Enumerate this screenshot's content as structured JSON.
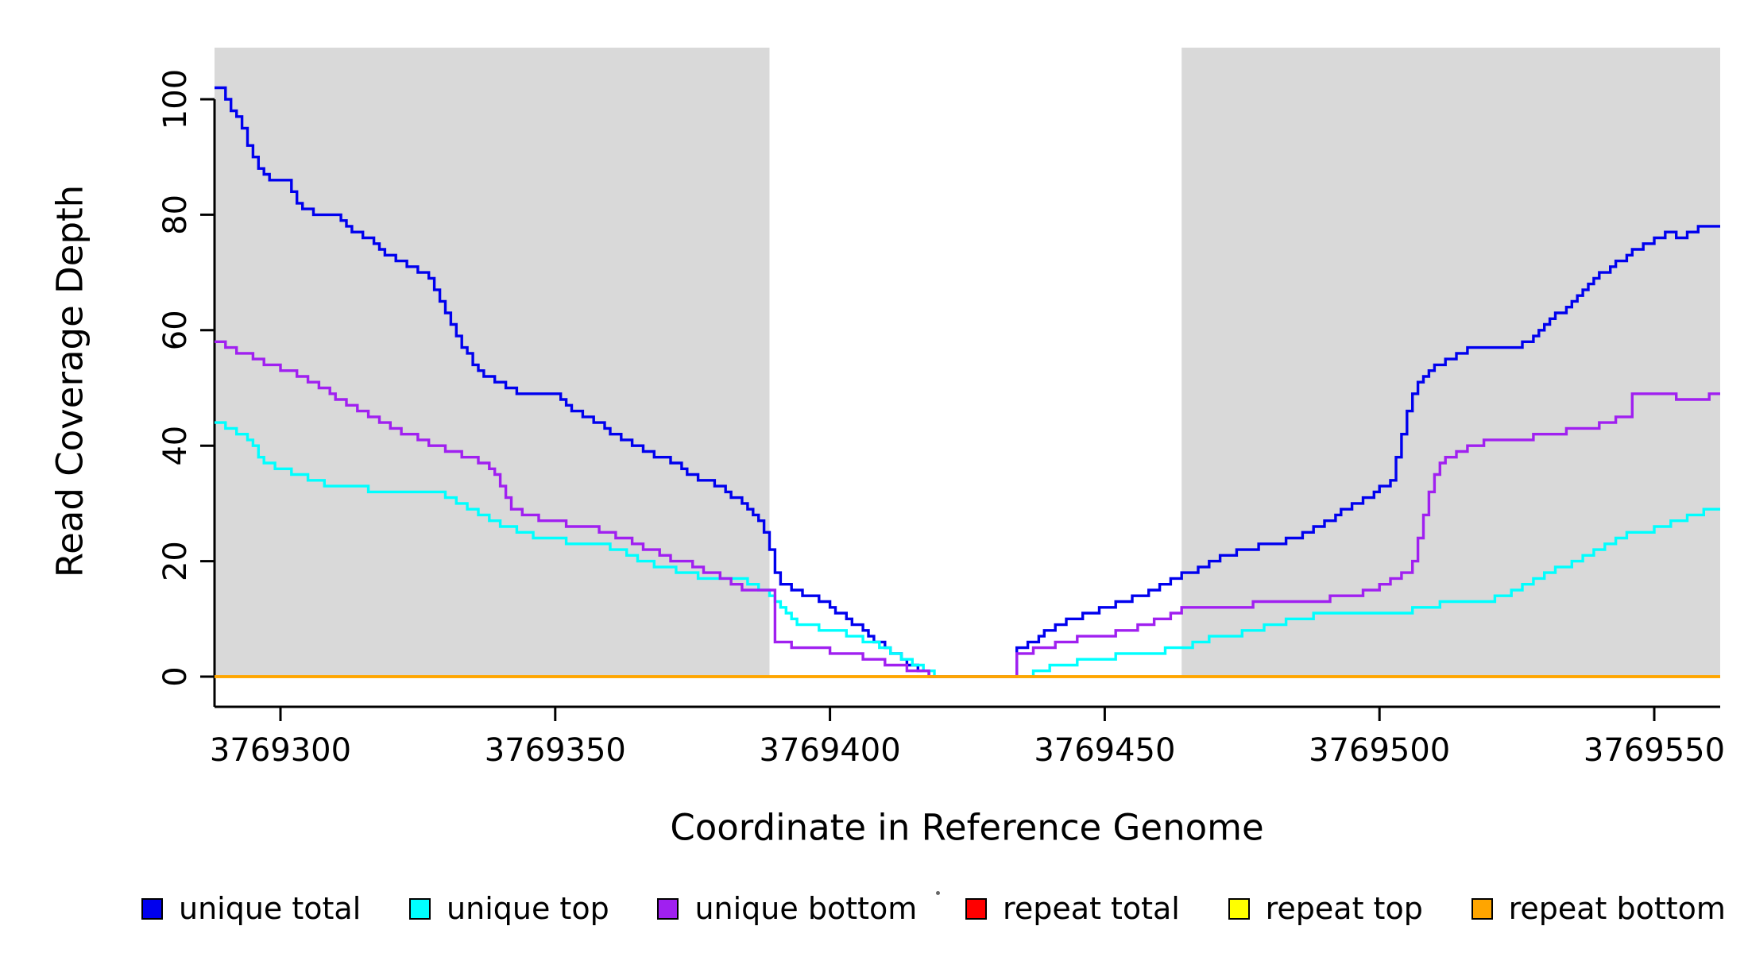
{
  "chart_data": {
    "type": "line",
    "subtype": "step",
    "title": "",
    "xlabel": "Coordinate in Reference Genome",
    "ylabel": "Read Coverage Depth",
    "xlim": [
      3769288,
      3769562
    ],
    "ylim": [
      0,
      105
    ],
    "xticks": [
      3769300,
      3769350,
      3769400,
      3769450,
      3769500,
      3769550
    ],
    "yticks": [
      0,
      20,
      40,
      60,
      80,
      100
    ],
    "grid": false,
    "legend_position": "bottom",
    "background_color": "#ffffff",
    "highlight_color": "#d9d9d9",
    "highlight_regions": [
      [
        3769288,
        3769389
      ],
      [
        3769464,
        3769562
      ]
    ],
    "series": [
      {
        "name": "unique total",
        "color": "#0000ee",
        "points": [
          [
            3769288,
            102
          ],
          [
            3769290,
            100
          ],
          [
            3769291,
            98
          ],
          [
            3769292,
            97
          ],
          [
            3769293,
            95
          ],
          [
            3769294,
            92
          ],
          [
            3769295,
            90
          ],
          [
            3769296,
            88
          ],
          [
            3769297,
            87
          ],
          [
            3769298,
            86
          ],
          [
            3769302,
            84
          ],
          [
            3769303,
            82
          ],
          [
            3769304,
            81
          ],
          [
            3769306,
            80
          ],
          [
            3769311,
            79
          ],
          [
            3769312,
            78
          ],
          [
            3769313,
            77
          ],
          [
            3769315,
            76
          ],
          [
            3769317,
            75
          ],
          [
            3769318,
            74
          ],
          [
            3769319,
            73
          ],
          [
            3769321,
            72
          ],
          [
            3769323,
            71
          ],
          [
            3769325,
            70
          ],
          [
            3769327,
            69
          ],
          [
            3769328,
            67
          ],
          [
            3769329,
            65
          ],
          [
            3769330,
            63
          ],
          [
            3769331,
            61
          ],
          [
            3769332,
            59
          ],
          [
            3769333,
            57
          ],
          [
            3769334,
            56
          ],
          [
            3769335,
            54
          ],
          [
            3769336,
            53
          ],
          [
            3769337,
            52
          ],
          [
            3769339,
            51
          ],
          [
            3769341,
            50
          ],
          [
            3769343,
            49
          ],
          [
            3769351,
            48
          ],
          [
            3769352,
            47
          ],
          [
            3769353,
            46
          ],
          [
            3769355,
            45
          ],
          [
            3769357,
            44
          ],
          [
            3769359,
            43
          ],
          [
            3769360,
            42
          ],
          [
            3769362,
            41
          ],
          [
            3769364,
            40
          ],
          [
            3769366,
            39
          ],
          [
            3769368,
            38
          ],
          [
            3769371,
            37
          ],
          [
            3769373,
            36
          ],
          [
            3769374,
            35
          ],
          [
            3769376,
            34
          ],
          [
            3769379,
            33
          ],
          [
            3769381,
            32
          ],
          [
            3769382,
            31
          ],
          [
            3769384,
            30
          ],
          [
            3769385,
            29
          ],
          [
            3769386,
            28
          ],
          [
            3769387,
            27
          ],
          [
            3769388,
            25
          ],
          [
            3769389,
            22
          ],
          [
            3769390,
            18
          ],
          [
            3769391,
            16
          ],
          [
            3769393,
            15
          ],
          [
            3769395,
            14
          ],
          [
            3769398,
            13
          ],
          [
            3769400,
            12
          ],
          [
            3769401,
            11
          ],
          [
            3769403,
            10
          ],
          [
            3769404,
            9
          ],
          [
            3769406,
            8
          ],
          [
            3769407,
            7
          ],
          [
            3769408,
            6
          ],
          [
            3769410,
            5
          ],
          [
            3769411,
            4
          ],
          [
            3769413,
            3
          ],
          [
            3769414,
            2
          ],
          [
            3769416,
            1
          ],
          [
            3769418,
            0
          ],
          [
            3769434,
            5
          ],
          [
            3769436,
            6
          ],
          [
            3769438,
            7
          ],
          [
            3769439,
            8
          ],
          [
            3769441,
            9
          ],
          [
            3769443,
            10
          ],
          [
            3769446,
            11
          ],
          [
            3769449,
            12
          ],
          [
            3769452,
            13
          ],
          [
            3769455,
            14
          ],
          [
            3769458,
            15
          ],
          [
            3769460,
            16
          ],
          [
            3769462,
            17
          ],
          [
            3769464,
            18
          ],
          [
            3769467,
            19
          ],
          [
            3769469,
            20
          ],
          [
            3769471,
            21
          ],
          [
            3769474,
            22
          ],
          [
            3769478,
            23
          ],
          [
            3769483,
            24
          ],
          [
            3769486,
            25
          ],
          [
            3769488,
            26
          ],
          [
            3769490,
            27
          ],
          [
            3769492,
            28
          ],
          [
            3769493,
            29
          ],
          [
            3769495,
            30
          ],
          [
            3769497,
            31
          ],
          [
            3769499,
            32
          ],
          [
            3769500,
            33
          ],
          [
            3769502,
            34
          ],
          [
            3769503,
            38
          ],
          [
            3769504,
            42
          ],
          [
            3769505,
            46
          ],
          [
            3769506,
            49
          ],
          [
            3769507,
            51
          ],
          [
            3769508,
            52
          ],
          [
            3769509,
            53
          ],
          [
            3769510,
            54
          ],
          [
            3769512,
            55
          ],
          [
            3769514,
            56
          ],
          [
            3769516,
            57
          ],
          [
            3769526,
            58
          ],
          [
            3769528,
            59
          ],
          [
            3769529,
            60
          ],
          [
            3769530,
            61
          ],
          [
            3769531,
            62
          ],
          [
            3769532,
            63
          ],
          [
            3769534,
            64
          ],
          [
            3769535,
            65
          ],
          [
            3769536,
            66
          ],
          [
            3769537,
            67
          ],
          [
            3769538,
            68
          ],
          [
            3769539,
            69
          ],
          [
            3769540,
            70
          ],
          [
            3769542,
            71
          ],
          [
            3769543,
            72
          ],
          [
            3769545,
            73
          ],
          [
            3769546,
            74
          ],
          [
            3769548,
            75
          ],
          [
            3769550,
            76
          ],
          [
            3769552,
            77
          ],
          [
            3769554,
            76
          ],
          [
            3769556,
            77
          ],
          [
            3769558,
            78
          ],
          [
            3769562,
            78
          ]
        ]
      },
      {
        "name": "unique top",
        "color": "#00ffff",
        "points": [
          [
            3769288,
            44
          ],
          [
            3769290,
            43
          ],
          [
            3769292,
            42
          ],
          [
            3769294,
            41
          ],
          [
            3769295,
            40
          ],
          [
            3769296,
            38
          ],
          [
            3769297,
            37
          ],
          [
            3769299,
            36
          ],
          [
            3769302,
            35
          ],
          [
            3769305,
            34
          ],
          [
            3769308,
            33
          ],
          [
            3769316,
            32
          ],
          [
            3769330,
            31
          ],
          [
            3769332,
            30
          ],
          [
            3769334,
            29
          ],
          [
            3769336,
            28
          ],
          [
            3769338,
            27
          ],
          [
            3769340,
            26
          ],
          [
            3769343,
            25
          ],
          [
            3769346,
            24
          ],
          [
            3769352,
            23
          ],
          [
            3769360,
            22
          ],
          [
            3769363,
            21
          ],
          [
            3769365,
            20
          ],
          [
            3769368,
            19
          ],
          [
            3769372,
            18
          ],
          [
            3769376,
            17
          ],
          [
            3769385,
            16
          ],
          [
            3769387,
            15
          ],
          [
            3769389,
            14
          ],
          [
            3769390,
            13
          ],
          [
            3769391,
            12
          ],
          [
            3769392,
            11
          ],
          [
            3769393,
            10
          ],
          [
            3769394,
            9
          ],
          [
            3769398,
            8
          ],
          [
            3769403,
            7
          ],
          [
            3769406,
            6
          ],
          [
            3769409,
            5
          ],
          [
            3769411,
            4
          ],
          [
            3769413,
            3
          ],
          [
            3769415,
            2
          ],
          [
            3769417,
            1
          ],
          [
            3769419,
            0
          ],
          [
            3769437,
            1
          ],
          [
            3769440,
            2
          ],
          [
            3769445,
            3
          ],
          [
            3769452,
            4
          ],
          [
            3769461,
            5
          ],
          [
            3769466,
            6
          ],
          [
            3769469,
            7
          ],
          [
            3769475,
            8
          ],
          [
            3769479,
            9
          ],
          [
            3769483,
            10
          ],
          [
            3769488,
            11
          ],
          [
            3769506,
            12
          ],
          [
            3769511,
            13
          ],
          [
            3769521,
            14
          ],
          [
            3769524,
            15
          ],
          [
            3769526,
            16
          ],
          [
            3769528,
            17
          ],
          [
            3769530,
            18
          ],
          [
            3769532,
            19
          ],
          [
            3769535,
            20
          ],
          [
            3769537,
            21
          ],
          [
            3769539,
            22
          ],
          [
            3769541,
            23
          ],
          [
            3769543,
            24
          ],
          [
            3769545,
            25
          ],
          [
            3769550,
            26
          ],
          [
            3769553,
            27
          ],
          [
            3769556,
            28
          ],
          [
            3769559,
            29
          ],
          [
            3769562,
            29
          ]
        ]
      },
      {
        "name": "unique bottom",
        "color": "#a020f0",
        "points": [
          [
            3769288,
            58
          ],
          [
            3769290,
            57
          ],
          [
            3769292,
            56
          ],
          [
            3769295,
            55
          ],
          [
            3769297,
            54
          ],
          [
            3769300,
            53
          ],
          [
            3769303,
            52
          ],
          [
            3769305,
            51
          ],
          [
            3769307,
            50
          ],
          [
            3769309,
            49
          ],
          [
            3769310,
            48
          ],
          [
            3769312,
            47
          ],
          [
            3769314,
            46
          ],
          [
            3769316,
            45
          ],
          [
            3769318,
            44
          ],
          [
            3769320,
            43
          ],
          [
            3769322,
            42
          ],
          [
            3769325,
            41
          ],
          [
            3769327,
            40
          ],
          [
            3769330,
            39
          ],
          [
            3769333,
            38
          ],
          [
            3769336,
            37
          ],
          [
            3769338,
            36
          ],
          [
            3769339,
            35
          ],
          [
            3769340,
            33
          ],
          [
            3769341,
            31
          ],
          [
            3769342,
            29
          ],
          [
            3769344,
            28
          ],
          [
            3769347,
            27
          ],
          [
            3769352,
            26
          ],
          [
            3769358,
            25
          ],
          [
            3769361,
            24
          ],
          [
            3769364,
            23
          ],
          [
            3769366,
            22
          ],
          [
            3769369,
            21
          ],
          [
            3769371,
            20
          ],
          [
            3769375,
            19
          ],
          [
            3769377,
            18
          ],
          [
            3769380,
            17
          ],
          [
            3769382,
            16
          ],
          [
            3769384,
            15
          ],
          [
            3769390,
            6
          ],
          [
            3769393,
            5
          ],
          [
            3769400,
            4
          ],
          [
            3769406,
            3
          ],
          [
            3769410,
            2
          ],
          [
            3769414,
            1
          ],
          [
            3769418,
            0
          ],
          [
            3769434,
            4
          ],
          [
            3769437,
            5
          ],
          [
            3769441,
            6
          ],
          [
            3769445,
            7
          ],
          [
            3769452,
            8
          ],
          [
            3769456,
            9
          ],
          [
            3769459,
            10
          ],
          [
            3769462,
            11
          ],
          [
            3769464,
            12
          ],
          [
            3769477,
            13
          ],
          [
            3769491,
            14
          ],
          [
            3769497,
            15
          ],
          [
            3769500,
            16
          ],
          [
            3769502,
            17
          ],
          [
            3769504,
            18
          ],
          [
            3769506,
            20
          ],
          [
            3769507,
            24
          ],
          [
            3769508,
            28
          ],
          [
            3769509,
            32
          ],
          [
            3769510,
            35
          ],
          [
            3769511,
            37
          ],
          [
            3769512,
            38
          ],
          [
            3769514,
            39
          ],
          [
            3769516,
            40
          ],
          [
            3769519,
            41
          ],
          [
            3769528,
            42
          ],
          [
            3769534,
            43
          ],
          [
            3769540,
            44
          ],
          [
            3769543,
            45
          ],
          [
            3769546,
            49
          ],
          [
            3769554,
            48
          ],
          [
            3769560,
            49
          ],
          [
            3769562,
            49
          ]
        ]
      },
      {
        "name": "repeat total",
        "color": "#ff0000",
        "points": [
          [
            3769288,
            0
          ],
          [
            3769562,
            0
          ]
        ]
      },
      {
        "name": "repeat top",
        "color": "#ffff00",
        "points": [
          [
            3769288,
            0
          ],
          [
            3769562,
            0
          ]
        ]
      },
      {
        "name": "repeat bottom",
        "color": "#ffa500",
        "points": [
          [
            3769288,
            0
          ],
          [
            3769562,
            0
          ]
        ]
      }
    ]
  }
}
